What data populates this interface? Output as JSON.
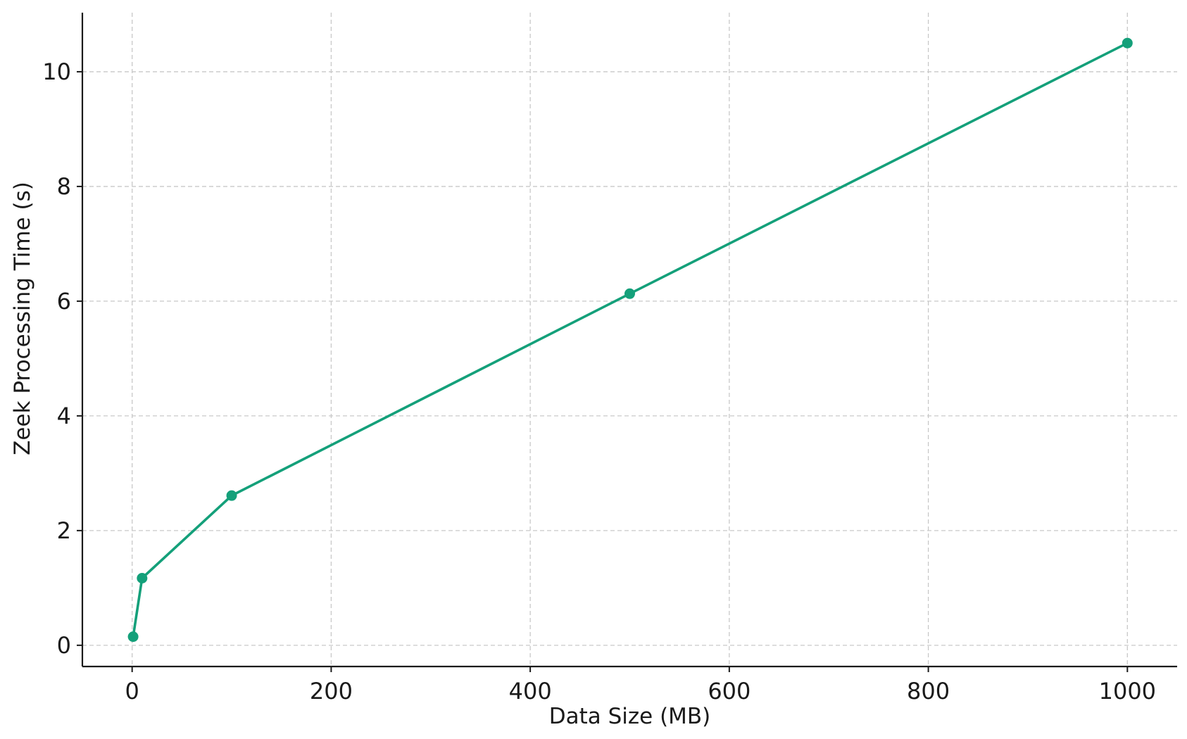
{
  "chart_data": {
    "type": "line",
    "title": "",
    "xlabel": "Data Size (MB)",
    "ylabel": "Zeek Processing Time (s)",
    "xlim": [
      -50,
      1050
    ],
    "ylim": [
      -0.37,
      11.03
    ],
    "xticks": [
      0,
      200,
      400,
      600,
      800,
      1000
    ],
    "xtick_labels": [
      "0",
      "200",
      "400",
      "600",
      "800",
      "1000"
    ],
    "yticks": [
      0,
      2,
      4,
      6,
      8,
      10
    ],
    "ytick_labels": [
      "0",
      "2",
      "4",
      "6",
      "8",
      "10"
    ],
    "grid": true,
    "legend": "none",
    "series": [
      {
        "color": "#14a07a",
        "marker": "circle",
        "x": [
          1,
          10,
          100,
          500,
          1000
        ],
        "y": [
          0.15,
          1.17,
          2.61,
          6.13,
          10.5
        ]
      }
    ]
  }
}
